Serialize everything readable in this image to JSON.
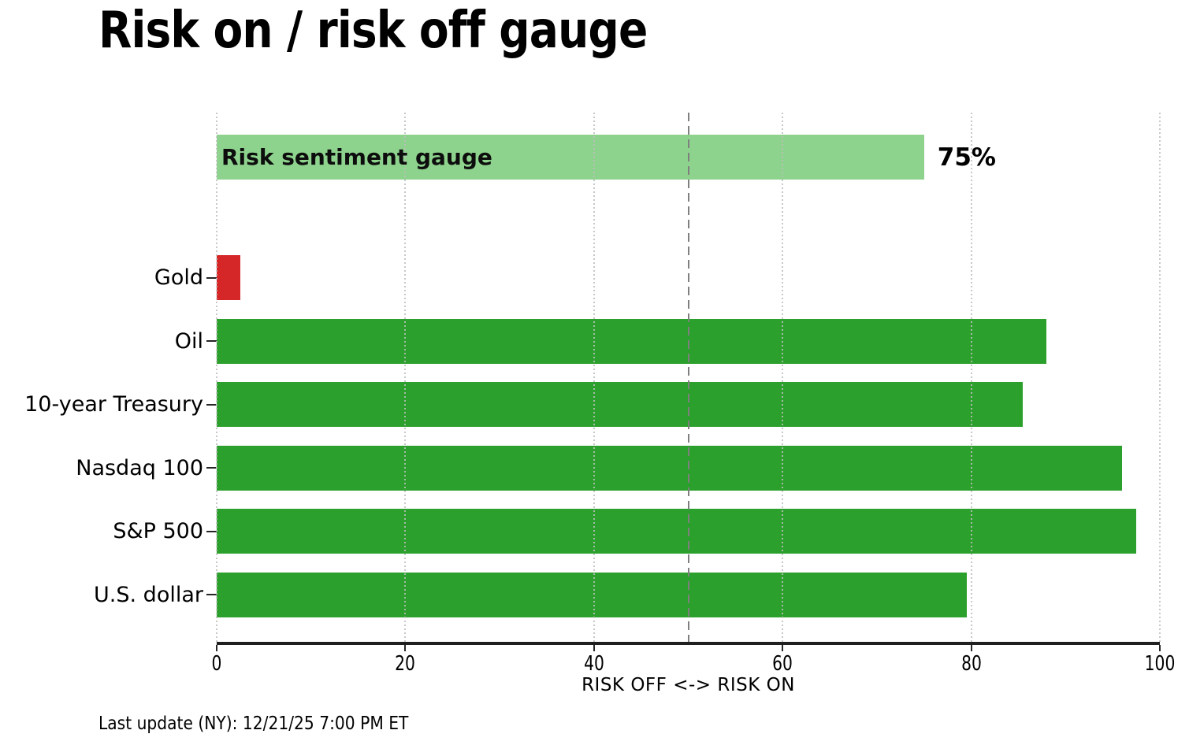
{
  "title": "Risk on / risk off gauge",
  "footer": "Last update (NY): 12/21/25 7:00 PM ET",
  "colors": {
    "risk_on_green": "#2ca02c",
    "gauge_light_green": "#8dd38d",
    "risk_off_red": "#d62728",
    "reference_line_gray": "#7f7f7f",
    "gridline_gray": "#c9c9c9",
    "axis_dark": "#262626"
  },
  "chart_data": {
    "type": "bar",
    "orientation": "horizontal",
    "title": "Risk on / risk off gauge",
    "xlabel": "RISK OFF <-> RISK ON",
    "xlim": [
      0,
      100
    ],
    "xticks": [
      0,
      20,
      40,
      60,
      80,
      100
    ],
    "grid": "vertical dotted gridlines at each x tick",
    "legend": "none",
    "reference_line": {
      "value": 50,
      "style": "dashed",
      "color": "#7f7f7f"
    },
    "gauge": {
      "label": "Risk sentiment gauge",
      "value": 75,
      "value_label": "75%",
      "color": "#8dd38d"
    },
    "categories": [
      "Gold",
      "Oil",
      "10-year Treasury",
      "Nasdaq 100",
      "S&P 500",
      "U.S. dollar"
    ],
    "values": [
      2.5,
      88,
      85.5,
      96,
      97.5,
      79.5
    ],
    "bar_colors": [
      "#d62728",
      "#2ca02c",
      "#2ca02c",
      "#2ca02c",
      "#2ca02c",
      "#2ca02c"
    ]
  }
}
